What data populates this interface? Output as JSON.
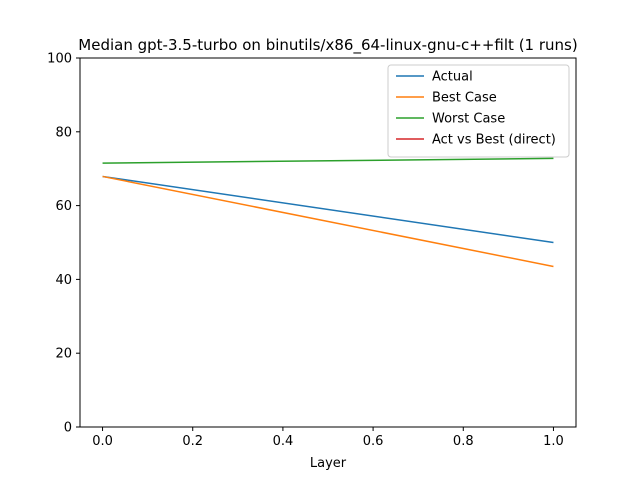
{
  "chart_data": {
    "type": "line",
    "title": "Median gpt-3.5-turbo on binutils/x86_64-linux-gnu-c++filt (1 runs)",
    "xlabel": "Layer",
    "ylabel": "",
    "xlim": [
      -0.05,
      1.05
    ],
    "ylim": [
      0,
      100
    ],
    "xticks": [
      "0.0",
      "0.2",
      "0.4",
      "0.6",
      "0.8",
      "1.0"
    ],
    "yticks": [
      "0",
      "20",
      "40",
      "60",
      "80",
      "100"
    ],
    "grid": false,
    "legend_position": "top-right",
    "series": [
      {
        "name": "Actual",
        "color": "#1f77b4",
        "x": [
          0.0,
          1.0
        ],
        "y": [
          67.9,
          50.0
        ]
      },
      {
        "name": "Best Case",
        "color": "#ff7f0e",
        "x": [
          0.0,
          1.0
        ],
        "y": [
          67.9,
          43.5
        ]
      },
      {
        "name": "Worst Case",
        "color": "#2ca02c",
        "x": [
          0.0,
          1.0
        ],
        "y": [
          71.5,
          72.8
        ]
      },
      {
        "name": "Act vs Best (direct)",
        "color": "#d62728",
        "x": [],
        "y": []
      }
    ]
  }
}
